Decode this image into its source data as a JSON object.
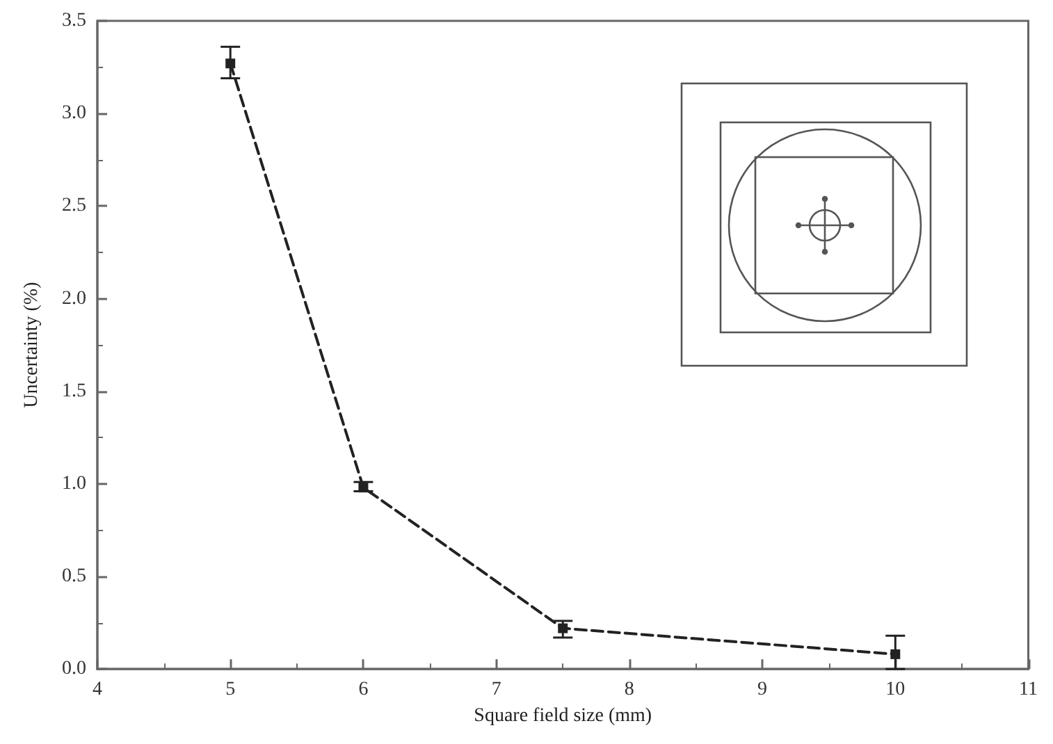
{
  "chart_data": {
    "type": "line",
    "xlabel": "Square field size (mm)",
    "ylabel": "Uncertainty (%)",
    "x": [
      5,
      6,
      7.5,
      10
    ],
    "values": [
      3.27,
      0.98,
      0.22,
      0.08
    ],
    "errors": [
      [
        3.19,
        3.36
      ],
      [
        0.96,
        1.01
      ],
      [
        0.17,
        0.26
      ],
      [
        0.0,
        0.18
      ]
    ],
    "color": "#222222",
    "marker": "square",
    "line_style": "dashed",
    "grid": false,
    "xlim": [
      4,
      11
    ],
    "xticks": [
      4,
      5,
      6,
      7,
      8,
      9,
      10,
      11
    ],
    "ylim": [
      0,
      3.5
    ],
    "yticks": [
      {
        "value": 0,
        "label": "0.0"
      },
      {
        "value": 0.5,
        "label": "0.5"
      },
      {
        "value": 1,
        "label": "1.0"
      },
      {
        "value": 1.5,
        "label": "1.5"
      },
      {
        "value": 2,
        "label": "2.0"
      },
      {
        "value": 2.5,
        "label": "2.5"
      },
      {
        "value": 3,
        "label": "3.0"
      },
      {
        "value": 3.5,
        "label": "3.5"
      }
    ]
  }
}
